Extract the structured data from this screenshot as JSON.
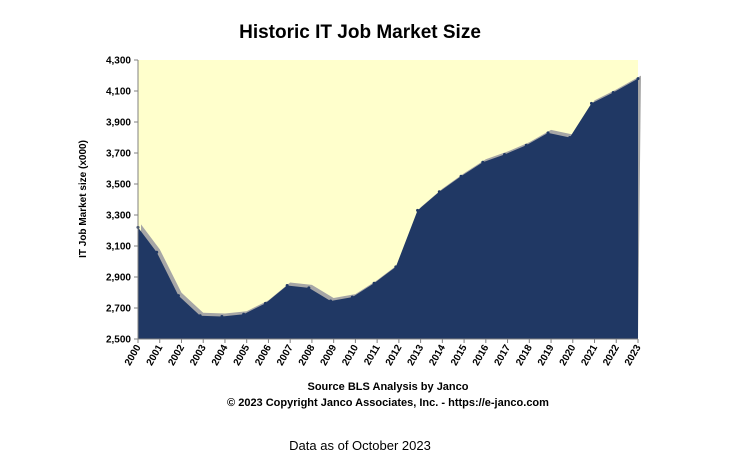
{
  "chart_data": {
    "type": "area",
    "title": "Historic IT Job Market Size",
    "ylabel": "IT Job Market size (x000)",
    "xlabel": "",
    "ylim": [
      2500,
      4300
    ],
    "yticks": [
      "2,500",
      "2,700",
      "2,900",
      "3,100",
      "3,300",
      "3,500",
      "3,700",
      "3,900",
      "4,100",
      "4,300"
    ],
    "ytick_values": [
      2500,
      2700,
      2900,
      3100,
      3300,
      3500,
      3700,
      3900,
      4100,
      4300
    ],
    "categories": [
      "2000",
      "2001",
      "2002",
      "2003",
      "2004",
      "2005",
      "2006",
      "2007",
      "2008",
      "2009",
      "2010",
      "2011",
      "2012",
      "2013",
      "2014",
      "2015",
      "2016",
      "2017",
      "2018",
      "2019",
      "2020",
      "2021",
      "2022",
      "2023"
    ],
    "x": [
      2000,
      2000.86,
      2001.86,
      2002.86,
      2003.86,
      2004.86,
      2005.86,
      2006.86,
      2007.86,
      2008.86,
      2009.86,
      2010.86,
      2011.86,
      2012.86,
      2013.86,
      2014.86,
      2015.86,
      2016.86,
      2017.86,
      2018.86,
      2019.86,
      2020.86,
      2021.86,
      2023
    ],
    "values": [
      3220,
      3060,
      2780,
      2650,
      2645,
      2660,
      2730,
      2845,
      2830,
      2745,
      2770,
      2860,
      2965,
      3330,
      3450,
      3550,
      3640,
      3690,
      3750,
      3830,
      3800,
      4020,
      4090,
      4180
    ],
    "colors": {
      "plot_bg": "#ffffcc",
      "area": "#203864",
      "shadow": "#a6a6a6"
    },
    "grid": false,
    "legend": "none"
  },
  "source_line": "Source BLS Analysis  by Janco",
  "copyright_line": "© 2023 Copyright Janco Associates, Inc. - https://e-janco.com",
  "footnote": "Data as of October 2023"
}
